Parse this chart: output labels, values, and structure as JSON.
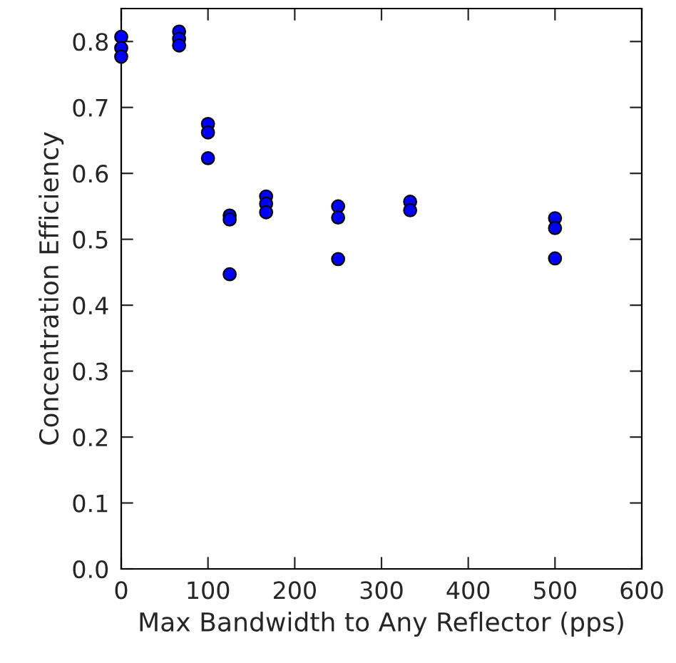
{
  "chart_data": {
    "type": "scatter",
    "xlabel": "Max Bandwidth to Any Reflector (pps)",
    "ylabel": "Concentration Efficiency",
    "x": [
      0,
      0,
      0,
      66.7,
      66.7,
      66.7,
      100,
      100,
      100,
      125,
      125,
      125,
      167,
      167,
      167,
      250,
      250,
      250,
      333,
      333,
      500,
      500,
      500
    ],
    "series": [
      {
        "color": "#0000ff",
        "values": [
          0.807,
          0.79,
          0.777,
          0.815,
          0.804,
          0.794,
          0.675,
          0.662,
          0.623,
          0.536,
          0.53,
          0.447,
          0.565,
          0.554,
          0.541,
          0.55,
          0.533,
          0.47,
          0.557,
          0.544,
          0.532,
          0.517,
          0.471
        ]
      }
    ],
    "xlim": [
      0,
      600
    ],
    "xticks": [
      0,
      100,
      200,
      300,
      400,
      500,
      600
    ],
    "ylim": [
      0,
      0.85
    ],
    "yticks": [
      {
        "value": 0,
        "label": "0.0"
      },
      0.1,
      0.2,
      0.3,
      0.4,
      0.5,
      0.6,
      0.7,
      0.8
    ],
    "marker": "circle",
    "grid": false,
    "legend": false
  }
}
